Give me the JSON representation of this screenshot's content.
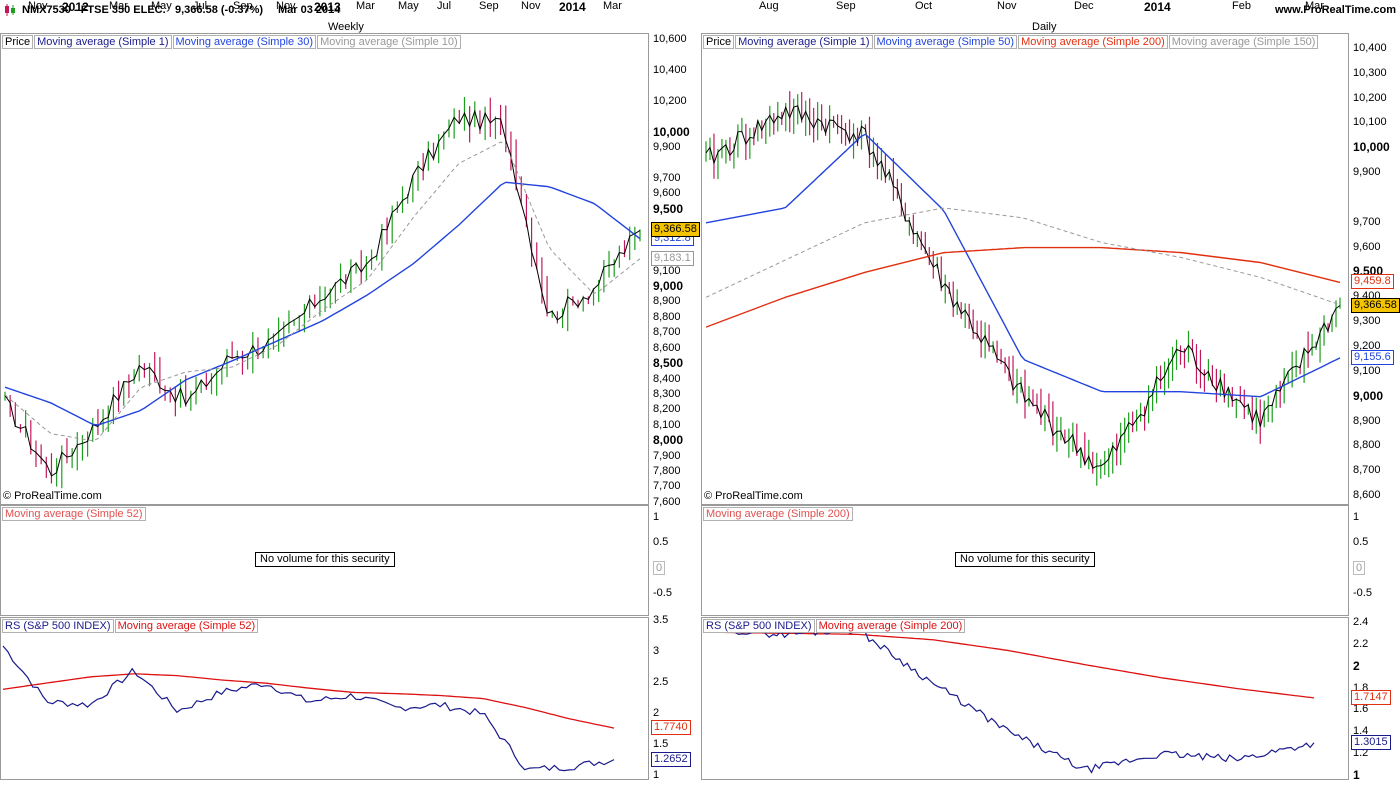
{
  "header": {
    "symbol": "NMX7530 - FTSE 350 ELEC.",
    "quote": "9,366.58 (-0.37%)",
    "date": "Mar 03 2014",
    "site": "www.ProRealTime.com"
  },
  "colors": {
    "up": "#1e9e1e",
    "down": "#c2185b",
    "close": "#000000",
    "ma_blue": "#2244dd",
    "ma_red": "#e03010",
    "ma_gray": "#999999",
    "rs": "#1a1a8c",
    "rs_ma": "#dd1111",
    "highlight": "#f5c400"
  },
  "copyright": "© ProRealTime.com",
  "weekly": {
    "title": "Weekly",
    "legend": [
      "Price",
      "Moving average (Simple 1)",
      "Moving average (Simple 30)",
      "Moving average (Simple 10)"
    ],
    "y_ticks": [
      "10,600",
      "10,400",
      "10,200",
      "10,000",
      "9,900",
      "9,700",
      "9,600",
      "9,500",
      "9,100",
      "9,000",
      "8,900",
      "8,800",
      "8,700",
      "8,600",
      "8,500",
      "8,400",
      "8,300",
      "8,200",
      "8,100",
      "8,000",
      "7,900",
      "7,800",
      "7,700",
      "7,600"
    ],
    "bold_ticks": [
      "10,000",
      "9,500",
      "9,000",
      "8,500",
      "8,000"
    ],
    "markers": [
      {
        "label": "9,366.58",
        "value": 9366.58,
        "style": "highlight"
      },
      {
        "label": "9,312.8",
        "value": 9312.8,
        "style": "blue"
      },
      {
        "label": "9,183.1",
        "value": 9183.1,
        "style": "gray"
      }
    ],
    "volume": {
      "legend": [
        "Moving average (Simple 52)"
      ],
      "message": "No volume for this security",
      "y_ticks": [
        "1",
        "0.5",
        "0",
        "-0.5"
      ]
    },
    "rs": {
      "legend": [
        "RS (S&P 500 INDEX)",
        "Moving average (Simple 52)"
      ],
      "y_ticks": [
        "3.5",
        "3",
        "2.5",
        "2",
        "1.5",
        "1"
      ],
      "markers": [
        {
          "label": "1.7740",
          "value": 1.774,
          "style": "red"
        },
        {
          "label": "1.2652",
          "value": 1.2652,
          "style": "navy"
        }
      ]
    },
    "x_labels": [
      {
        "label": "Nov",
        "bold": false
      },
      {
        "label": "2012",
        "bold": true
      },
      {
        "label": "Mar",
        "bold": false
      },
      {
        "label": "May",
        "bold": false
      },
      {
        "label": "Jul",
        "bold": false
      },
      {
        "label": "Sep",
        "bold": false
      },
      {
        "label": "Nov",
        "bold": false
      },
      {
        "label": "2013",
        "bold": true
      },
      {
        "label": "Mar",
        "bold": false
      },
      {
        "label": "May",
        "bold": false
      },
      {
        "label": "Jul",
        "bold": false
      },
      {
        "label": "Sep",
        "bold": false
      },
      {
        "label": "Nov",
        "bold": false
      },
      {
        "label": "2014",
        "bold": true
      },
      {
        "label": "Mar",
        "bold": false
      }
    ]
  },
  "daily": {
    "title": "Daily",
    "legend": [
      "Price",
      "Moving average (Simple 1)",
      "Moving average (Simple 50)",
      "Moving average (Simple 200)",
      "Moving average (Simple 150)"
    ],
    "y_ticks": [
      "10,400",
      "10,300",
      "10,200",
      "10,100",
      "10,000",
      "9,900",
      "9,700",
      "9,600",
      "9,500",
      "9,400",
      "9,300",
      "9,200",
      "9,100",
      "9,000",
      "8,900",
      "8,800",
      "8,700",
      "8,600"
    ],
    "bold_ticks": [
      "10,000",
      "9,500",
      "9,000"
    ],
    "markers": [
      {
        "label": "9,459.8",
        "value": 9459.8,
        "style": "red"
      },
      {
        "label": "9,366.58",
        "value": 9366.58,
        "style": "highlight"
      },
      {
        "label": "9,155.6",
        "value": 9155.6,
        "style": "blue"
      }
    ],
    "volume": {
      "legend": [
        "Moving average (Simple 200)"
      ],
      "message": "No volume for this security",
      "y_ticks": [
        "1",
        "0.5",
        "0",
        "-0.5"
      ]
    },
    "rs": {
      "legend": [
        "RS (S&P 500 INDEX)",
        "Moving average (Simple 200)"
      ],
      "y_ticks": [
        "2.4",
        "2.2",
        "2",
        "1.8",
        "1.6",
        "1.4",
        "1.2",
        "1"
      ],
      "bold_ticks": [
        "2",
        "1"
      ],
      "markers": [
        {
          "label": "1.7147",
          "value": 1.7147,
          "style": "red"
        },
        {
          "label": "1.3015",
          "value": 1.3015,
          "style": "navy"
        }
      ]
    },
    "x_labels": [
      {
        "label": "Aug",
        "bold": false
      },
      {
        "label": "Sep",
        "bold": false
      },
      {
        "label": "Oct",
        "bold": false
      },
      {
        "label": "Nov",
        "bold": false
      },
      {
        "label": "Dec",
        "bold": false
      },
      {
        "label": "2014",
        "bold": true
      },
      {
        "label": "Feb",
        "bold": false
      },
      {
        "label": "Mar",
        "bold": false
      }
    ]
  },
  "chart_data": [
    {
      "type": "line",
      "title": "FTSE 350 ELEC. Weekly",
      "x": [
        "Nov 2011",
        "Jan 2012",
        "Mar 2012",
        "May 2012",
        "Jul 2012",
        "Sep 2012",
        "Nov 2012",
        "Jan 2013",
        "Mar 2013",
        "May 2013",
        "Jul 2013",
        "Sep 2013",
        "Nov 2013",
        "Jan 2014",
        "Mar 2014"
      ],
      "series": [
        {
          "name": "Price (Simple 1)",
          "values": [
            8250,
            7800,
            8100,
            8500,
            8250,
            8550,
            8650,
            8950,
            9150,
            9700,
            10100,
            10050,
            8800,
            9000,
            9367
          ]
        },
        {
          "name": "Moving average (Simple 30)",
          "values": [
            8350,
            8250,
            8100,
            8200,
            8400,
            8520,
            8650,
            8780,
            8950,
            9150,
            9400,
            9680,
            9650,
            9540,
            9313
          ]
        },
        {
          "name": "Moving average (Simple 10)",
          "values": [
            8300,
            8050,
            8000,
            8350,
            8450,
            8480,
            8620,
            8850,
            9050,
            9450,
            9800,
            9950,
            9250,
            8950,
            9183
          ]
        }
      ],
      "ylim": [
        7580,
        10640
      ]
    },
    {
      "type": "line",
      "title": "RS (S&P 500 INDEX) Weekly",
      "x": [
        "Nov 2011",
        "Jan 2012",
        "Mar 2012",
        "May 2012",
        "Jul 2012",
        "Sep 2012",
        "Nov 2012",
        "Jan 2013",
        "Mar 2013",
        "May 2013",
        "Jul 2013",
        "Sep 2013",
        "Nov 2013",
        "Jan 2014",
        "Mar 2014"
      ],
      "series": [
        {
          "name": "RS (S&P 500 INDEX)",
          "values": [
            3.1,
            2.2,
            2.15,
            2.7,
            2.05,
            2.35,
            2.5,
            2.2,
            2.3,
            2.1,
            2.15,
            2.0,
            1.1,
            1.15,
            1.2652
          ]
        },
        {
          "name": "Moving average (Simple 52)",
          "values": [
            2.4,
            2.5,
            2.6,
            2.65,
            2.62,
            2.55,
            2.5,
            2.42,
            2.35,
            2.33,
            2.3,
            2.25,
            2.1,
            1.92,
            1.774
          ]
        }
      ],
      "ylim": [
        0.92,
        3.55
      ]
    },
    {
      "type": "line",
      "title": "FTSE 350 ELEC. Daily",
      "x": [
        "Jul 2013",
        "Aug 2013",
        "Sep 2013",
        "Oct 2013",
        "Nov 2013",
        "Dec 2013",
        "Jan 2014",
        "Feb 2014",
        "Mar 2014"
      ],
      "series": [
        {
          "name": "Price (Simple 1)",
          "values": [
            9950,
            10150,
            10050,
            9450,
            9000,
            8700,
            9200,
            8900,
            9367
          ]
        },
        {
          "name": "Moving average (Simple 50)",
          "values": [
            9700,
            9760,
            10060,
            9750,
            9150,
            9020,
            9020,
            9000,
            9156
          ]
        },
        {
          "name": "Moving average (Simple 200)",
          "values": [
            9280,
            9400,
            9500,
            9580,
            9600,
            9600,
            9580,
            9540,
            9460
          ]
        },
        {
          "name": "Moving average (Simple 150)",
          "values": [
            9400,
            9550,
            9700,
            9760,
            9720,
            9620,
            9560,
            9480,
            9370
          ]
        }
      ],
      "ylim": [
        8560,
        10460
      ]
    },
    {
      "type": "line",
      "title": "RS (S&P 500 INDEX) Daily",
      "x": [
        "Jul 2013",
        "Aug 2013",
        "Sep 2013",
        "Oct 2013",
        "Nov 2013",
        "Dec 2013",
        "Jan 2014",
        "Feb 2014",
        "Mar 2014"
      ],
      "series": [
        {
          "name": "RS (S&P 500 INDEX)",
          "values": [
            2.36,
            2.3,
            2.35,
            1.85,
            1.4,
            1.05,
            1.2,
            1.15,
            1.3015
          ]
        },
        {
          "name": "Moving average (Simple 200)",
          "values": [
            2.32,
            2.31,
            2.3,
            2.25,
            2.15,
            2.02,
            1.9,
            1.8,
            1.7147
          ]
        }
      ],
      "ylim": [
        0.95,
        2.45
      ]
    }
  ]
}
